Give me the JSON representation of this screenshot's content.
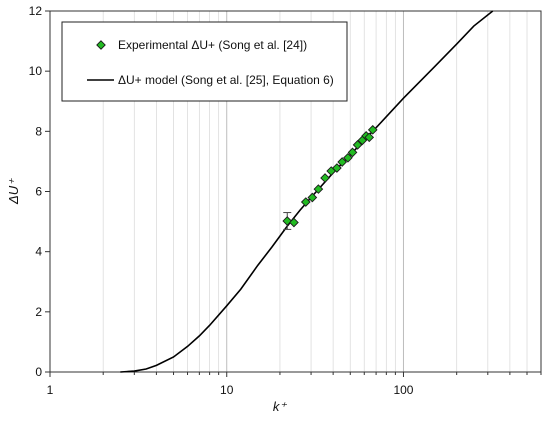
{
  "chart_data": {
    "type": "scatter",
    "xscale": "log",
    "xlim": [
      1,
      600
    ],
    "ylim": [
      0,
      12
    ],
    "xlabel": "k⁺",
    "ylabel": "ΔU⁺",
    "xticks": [
      "1",
      "10",
      "100"
    ],
    "yticks": [
      "0",
      "2",
      "4",
      "6",
      "8",
      "10",
      "12"
    ],
    "grid": {
      "x_major": true,
      "x_minor": true,
      "y": false
    },
    "legend_position": "top-left, boxed",
    "series": [
      {
        "name": "Experimental ΔU+ (Song et al. [24])",
        "kind": "points",
        "marker": "diamond",
        "color": "#22bb22",
        "points": [
          {
            "x": 22,
            "y": 5.02,
            "err": 0.28
          },
          {
            "x": 24,
            "y": 4.97
          },
          {
            "x": 28,
            "y": 5.65
          },
          {
            "x": 30.5,
            "y": 5.8
          },
          {
            "x": 33,
            "y": 6.08
          },
          {
            "x": 36,
            "y": 6.45
          },
          {
            "x": 39,
            "y": 6.68
          },
          {
            "x": 42,
            "y": 6.78
          },
          {
            "x": 45,
            "y": 6.98
          },
          {
            "x": 48.5,
            "y": 7.12
          },
          {
            "x": 51.5,
            "y": 7.3
          },
          {
            "x": 55,
            "y": 7.55
          },
          {
            "x": 58.5,
            "y": 7.7
          },
          {
            "x": 61.5,
            "y": 7.85
          },
          {
            "x": 64,
            "y": 7.8
          },
          {
            "x": 67,
            "y": 8.05
          }
        ]
      },
      {
        "name": "ΔU+ model (Song et al. [25], Equation 6)",
        "kind": "line",
        "color": "#000000",
        "points": [
          {
            "x": 2.5,
            "y": 0.0
          },
          {
            "x": 3.0,
            "y": 0.03
          },
          {
            "x": 3.5,
            "y": 0.1
          },
          {
            "x": 4,
            "y": 0.22
          },
          {
            "x": 5,
            "y": 0.5
          },
          {
            "x": 6,
            "y": 0.85
          },
          {
            "x": 7,
            "y": 1.2
          },
          {
            "x": 8,
            "y": 1.55
          },
          {
            "x": 10,
            "y": 2.2
          },
          {
            "x": 12,
            "y": 2.75
          },
          {
            "x": 15,
            "y": 3.55
          },
          {
            "x": 18,
            "y": 4.15
          },
          {
            "x": 22,
            "y": 4.85
          },
          {
            "x": 26,
            "y": 5.38
          },
          {
            "x": 30,
            "y": 5.8
          },
          {
            "x": 40,
            "y": 6.62
          },
          {
            "x": 50,
            "y": 7.22
          },
          {
            "x": 70,
            "y": 8.12
          },
          {
            "x": 100,
            "y": 9.1
          },
          {
            "x": 150,
            "y": 10.15
          },
          {
            "x": 200,
            "y": 10.9
          },
          {
            "x": 250,
            "y": 11.5
          },
          {
            "x": 320,
            "y": 12.0
          }
        ]
      }
    ]
  }
}
